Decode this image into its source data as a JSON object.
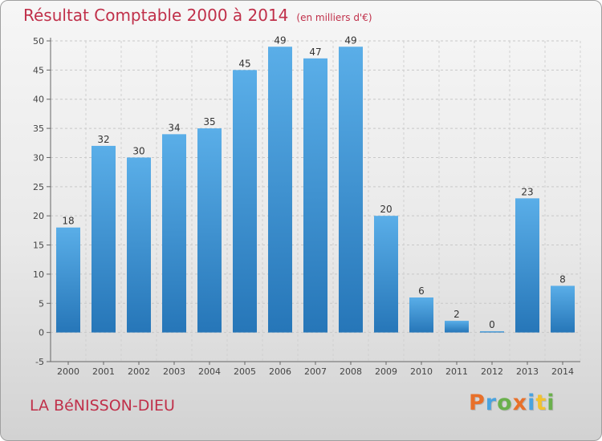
{
  "title": "Résultat Comptable 2000 à 2014",
  "unit_note": "(en milliers d'€)",
  "commune": "LA BéNISSON-DIEU",
  "logo": {
    "text": "Proxiti",
    "colors": [
      "#e8702a",
      "#4aa3df",
      "#6ab04c",
      "#e8702a",
      "#4aa3df",
      "#f2c230",
      "#6ab04c"
    ]
  },
  "colors": {
    "bar_light": "#5aaee8",
    "bar_dark": "#2676b8",
    "title": "#c0304a"
  },
  "chart_data": {
    "type": "bar",
    "categories": [
      "2000",
      "2001",
      "2002",
      "2003",
      "2004",
      "2005",
      "2006",
      "2007",
      "2008",
      "2009",
      "2010",
      "2011",
      "2012",
      "2013",
      "2014"
    ],
    "values": [
      18,
      32,
      30,
      34,
      35,
      45,
      49,
      47,
      49,
      20,
      6,
      2,
      0,
      23,
      8
    ],
    "value_labels": [
      "18",
      "32",
      "30",
      "34",
      "35",
      "45",
      "49",
      "47",
      "49",
      "20",
      "6",
      "2",
      "0",
      "23",
      "8"
    ],
    "ylim": [
      -5,
      50
    ],
    "yticks": [
      -5,
      0,
      5,
      10,
      15,
      20,
      25,
      30,
      35,
      40,
      45,
      50
    ],
    "ytick_labels": [
      "-5",
      "0",
      "5",
      "10",
      "15",
      "20",
      "25",
      "30",
      "35",
      "40",
      "45",
      "50"
    ],
    "grid": true,
    "legend": false
  }
}
